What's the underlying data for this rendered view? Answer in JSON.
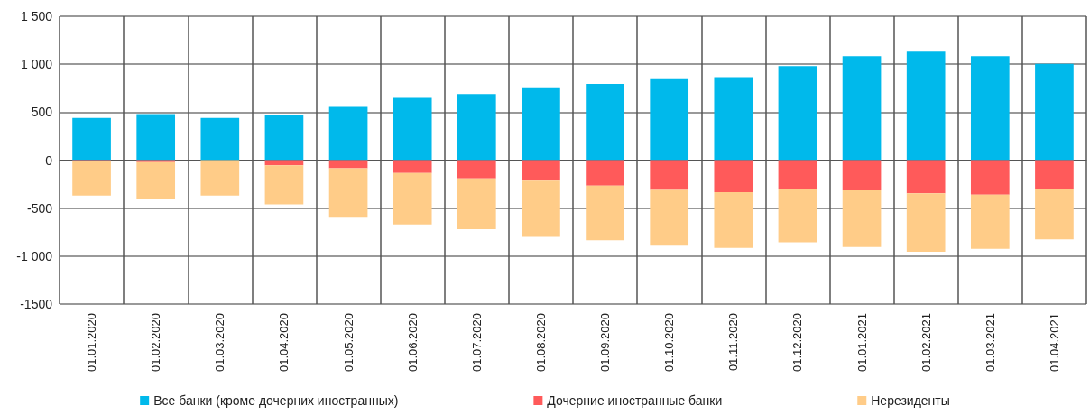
{
  "chart_data": {
    "type": "bar",
    "stacked": true,
    "grid": true,
    "legend": "bottom",
    "categories": [
      "01.01.2020",
      "01.02.2020",
      "01.03.2020",
      "01.04.2020",
      "01.05.2020",
      "01.06.2020",
      "01.07.2020",
      "01.08.2020",
      "01.09.2020",
      "01.10.2020",
      "01.11.2020",
      "01.12.2020",
      "01.01.2021",
      "01.02.2021",
      "01.03.2021",
      "01.04.2021"
    ],
    "ylim": [
      -1500,
      1500
    ],
    "yticks": [
      -1500,
      {
        "value": -1000,
        "label": "-1 000"
      },
      -500,
      0,
      500,
      {
        "value": 1000,
        "label": "1 000"
      },
      {
        "value": 1500,
        "label": "1 500"
      }
    ],
    "series": [
      {
        "name": "Все банки (кроме дочерних иностранных)",
        "color": "#00b9eb",
        "values": [
          440,
          480,
          440,
          475,
          555,
          650,
          690,
          760,
          795,
          845,
          865,
          980,
          1085,
          1130,
          1085,
          1005
        ]
      },
      {
        "name": "Дочерние иностранные банки",
        "color": "#ff5a5a",
        "values": [
          -15,
          -20,
          null,
          -55,
          -85,
          -135,
          -190,
          -215,
          -265,
          -310,
          -335,
          -300,
          -315,
          -345,
          -360,
          -305
        ]
      },
      {
        "name": "Нерезиденты",
        "color": "#ffcc88",
        "values": [
          -355,
          -390,
          -370,
          -405,
          -515,
          -535,
          -530,
          -585,
          -570,
          -580,
          -580,
          -555,
          -590,
          -610,
          -565,
          -520
        ]
      }
    ]
  }
}
